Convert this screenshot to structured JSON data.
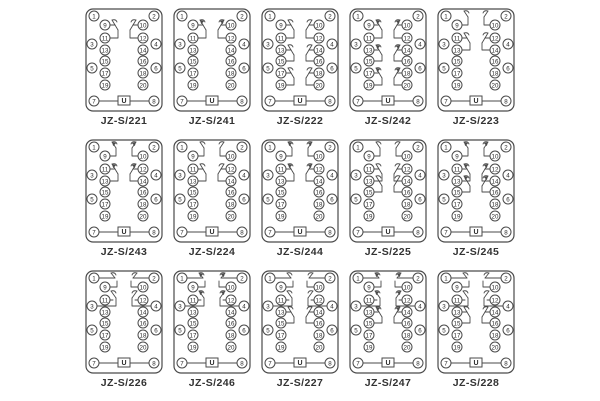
{
  "page": {
    "background": "#ffffff"
  },
  "colors": {
    "line": "#4a4a4a",
    "text": "#2b2b2b",
    "label": "#333333",
    "card_fill": "#ffffff"
  },
  "terminals": [
    "1",
    "2",
    "3",
    "4",
    "5",
    "6",
    "7",
    "8",
    "9",
    "10",
    "11",
    "12",
    "13",
    "14",
    "15",
    "16",
    "17",
    "18",
    "19",
    "20"
  ],
  "u_label": "U",
  "diagrams": [
    {
      "label": "JZ-S/221",
      "contacts": "p1",
      "style": "plain"
    },
    {
      "label": "JZ-S/241",
      "contacts": "p1",
      "style": "arrow"
    },
    {
      "label": "JZ-S/222",
      "contacts": "p3",
      "style": "plain"
    },
    {
      "label": "JZ-S/242",
      "contacts": "p3",
      "style": "arrow"
    },
    {
      "label": "JZ-S/223",
      "contacts": "t1m1",
      "style": "plain"
    },
    {
      "label": "JZ-S/243",
      "contacts": "t1m1",
      "style": "arrow"
    },
    {
      "label": "JZ-S/224",
      "contacts": "t1m1",
      "style": "plain"
    },
    {
      "label": "JZ-S/244",
      "contacts": "t1m1",
      "style": "arrow"
    },
    {
      "label": "JZ-S/225",
      "contacts": "t1m2",
      "style": "plain"
    },
    {
      "label": "JZ-S/245",
      "contacts": "t1m2",
      "style": "arrow"
    },
    {
      "label": "JZ-S/226",
      "contacts": "r2",
      "style": "plain"
    },
    {
      "label": "JZ-S/246",
      "contacts": "r2",
      "style": "arrow"
    },
    {
      "label": "JZ-S/227",
      "contacts": "r2p1",
      "style": "plain"
    },
    {
      "label": "JZ-S/247",
      "contacts": "r2p1",
      "style": "arrow"
    },
    {
      "label": "JZ-S/228",
      "contacts": "r2p1",
      "style": "plain"
    }
  ]
}
